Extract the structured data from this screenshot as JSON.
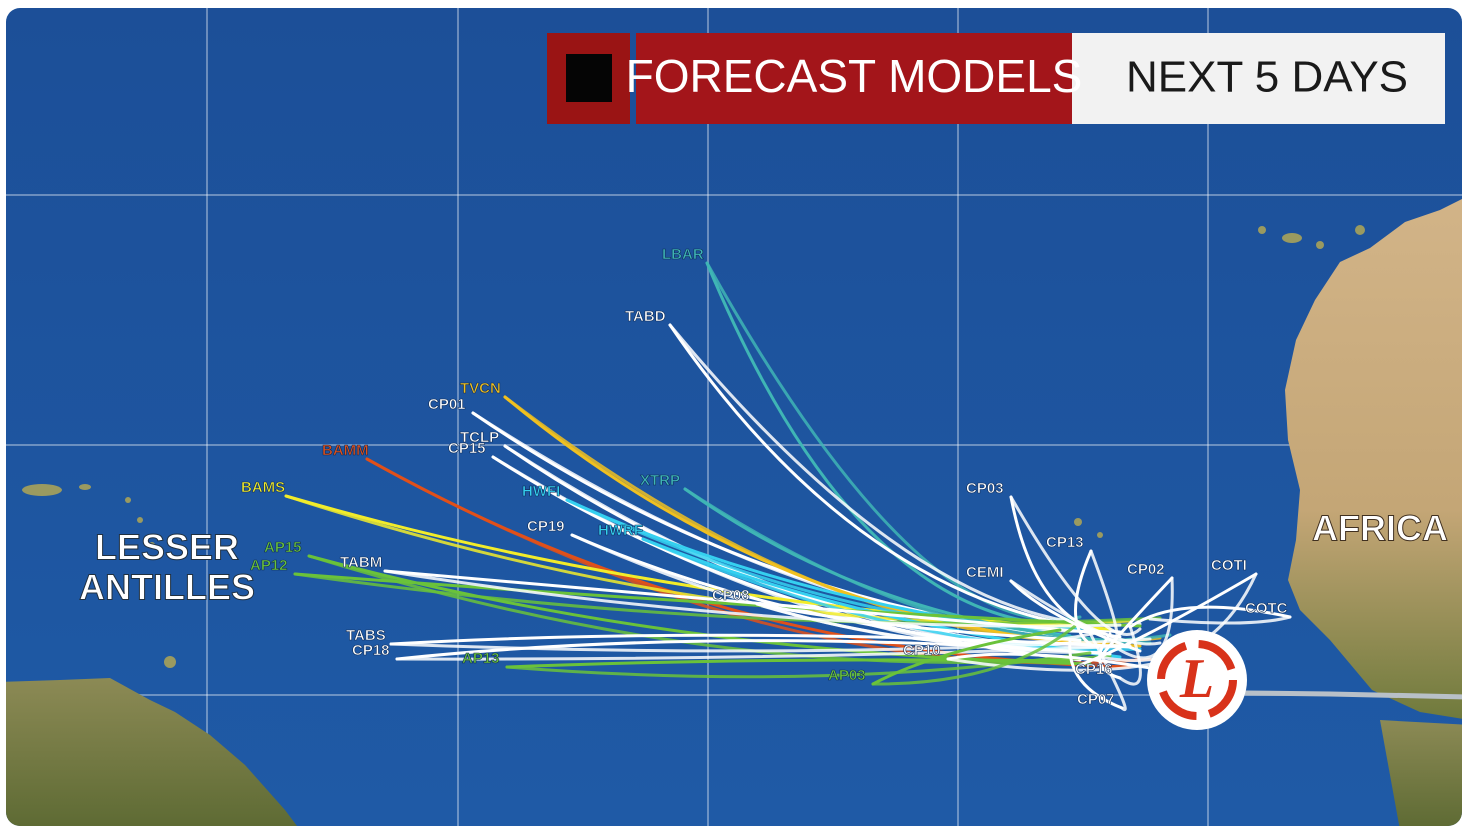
{
  "header": {
    "title": "FORECAST MODELS",
    "subtitle": "NEXT 5 DAYS"
  },
  "regions": {
    "west": [
      "LESSER",
      "ANTILLES"
    ],
    "east": "AFRICA"
  },
  "storm_symbol": "L",
  "models": [
    {
      "label": "LBAR",
      "color": "#3fb5b5"
    },
    {
      "label": "TABD",
      "color": "#ffffff"
    },
    {
      "label": "CP01",
      "color": "#ffffff"
    },
    {
      "label": "TVCN",
      "color": "#f0c020"
    },
    {
      "label": "TCLP",
      "color": "#ffffff"
    },
    {
      "label": "CP15",
      "color": "#ffffff"
    },
    {
      "label": "BAMM",
      "color": "#e0501a"
    },
    {
      "label": "BAMS",
      "color": "#f2ec2a"
    },
    {
      "label": "HWFI",
      "color": "#35d0f0"
    },
    {
      "label": "XTRP",
      "color": "#3fb5b5"
    },
    {
      "label": "CP19",
      "color": "#ffffff"
    },
    {
      "label": "HWRF",
      "color": "#35d0f0"
    },
    {
      "label": "AP15",
      "color": "#6ac23a"
    },
    {
      "label": "AP12",
      "color": "#6ac23a"
    },
    {
      "label": "TABM",
      "color": "#ffffff"
    },
    {
      "label": "CP08",
      "color": "#ffffff"
    },
    {
      "label": "TABS",
      "color": "#ffffff"
    },
    {
      "label": "CP18",
      "color": "#ffffff"
    },
    {
      "label": "AP13",
      "color": "#6ac23a"
    },
    {
      "label": "CP10",
      "color": "#ffffff"
    },
    {
      "label": "AP03",
      "color": "#6ac23a"
    },
    {
      "label": "CP03",
      "color": "#ffffff"
    },
    {
      "label": "CP13",
      "color": "#ffffff"
    },
    {
      "label": "CEMI",
      "color": "#ffffff"
    },
    {
      "label": "CP02",
      "color": "#ffffff"
    },
    {
      "label": "COTI",
      "color": "#ffffff"
    },
    {
      "label": "COTC",
      "color": "#ffffff"
    },
    {
      "label": "CP16",
      "color": "#ffffff"
    },
    {
      "label": "CP07",
      "color": "#ffffff"
    }
  ]
}
